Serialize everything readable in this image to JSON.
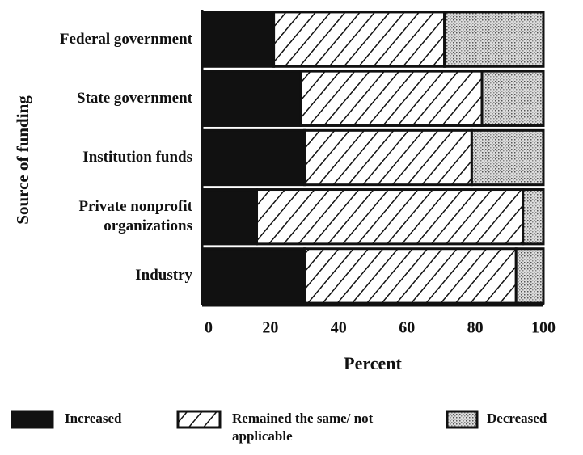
{
  "chart_data": {
    "type": "stacked-bar",
    "orientation": "horizontal",
    "y_label": "Source of funding",
    "x_label": "Percent",
    "categories": [
      "Federal government",
      "State government",
      "Institution funds",
      "Private nonprofit organizations",
      "Industry"
    ],
    "series": [
      {
        "name": "Increased",
        "color": "#111111",
        "pattern": "solid",
        "values": [
          21,
          29,
          30,
          16,
          30
        ]
      },
      {
        "name": "Remained the same/ not applicable",
        "color": "#111111",
        "pattern": "hatch",
        "values": [
          50,
          53,
          49,
          78,
          62
        ]
      },
      {
        "name": "Decreased",
        "color": "#bbbbbb",
        "pattern": "dots",
        "values": [
          29,
          18,
          21,
          6,
          8
        ]
      }
    ],
    "xlim": [
      0,
      100
    ],
    "xticks": [
      0,
      20,
      40,
      60,
      80,
      100
    ]
  }
}
